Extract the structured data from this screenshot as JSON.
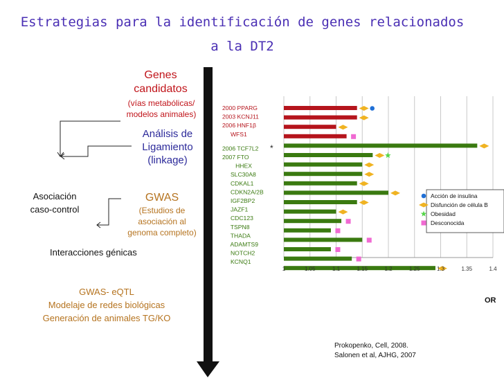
{
  "title": {
    "line1": "Estrategias para la identificación de genes relacionados",
    "line2": "a la DT2"
  },
  "left": {
    "candidates": {
      "line1": "Genes",
      "line2": "candidatos",
      "line3": "(vías metabólicas/",
      "line4": "modelos animales)"
    },
    "linkage": {
      "line1": "Análisis de",
      "line2": "Ligamiento",
      "line3": "(linkage)"
    },
    "association": {
      "line1": "Asociación",
      "line2": "caso-control"
    },
    "gwas": {
      "line1": "GWAS",
      "line2": "(Estudios de",
      "line3": "asociación al",
      "line4": "genoma completo)"
    },
    "interactions": "Interacciones génicas",
    "future": {
      "line1": "GWAS- eQTL",
      "line2": "Modelaje de redes biológicas",
      "line3": "Generación de animales TG/KO"
    }
  },
  "colors": {
    "title": "#4a2fb4",
    "red_text": "#c0141a",
    "blue_text": "#2c2a9a",
    "brown_text": "#b5731f",
    "bar_red": "#b5141c",
    "bar_green": "#3a7a10",
    "insulin": "#1f6fd6",
    "beta": "#f0b322",
    "obesity": "#56d64a",
    "unknown": "#f06ad2"
  },
  "chart_data": {
    "type": "bar",
    "orientation": "horizontal",
    "xlabel": "OR",
    "xlim": [
      1,
      1.4
    ],
    "xticks": [
      "1",
      "1.05",
      "1.1",
      "1.15",
      "1.2",
      "1.25",
      "1.3",
      "1.35",
      "1.4"
    ],
    "grid": true,
    "legend_placement": "right",
    "legend": [
      {
        "key": "insulin",
        "label": "Acción de insulina"
      },
      {
        "key": "beta",
        "label": "Disfunción de célula B"
      },
      {
        "key": "obesity",
        "label": "Obesidad"
      },
      {
        "key": "unknown",
        "label": "Desconocida"
      }
    ],
    "gene_labels": [
      "2000 PPARG",
      "2003 KCNJ11",
      "2006 HNF1β",
      "     WFS1",
      "2006 TCF7L2",
      "2007 FTO",
      "        HHEX",
      "     SLC30A8",
      "     CDKAL1",
      "     CDKN2A/2B",
      "     IGF2BP2",
      "     JAZF1",
      "     CDC123",
      "     TSPN8",
      "     THADA",
      "     ADAMTS9",
      "     NOTCH2",
      "     KCNQ1"
    ],
    "tcf7l2_asterisk": "*",
    "bars": [
      {
        "gene": "PPARG",
        "or": 1.14,
        "group": "candidate",
        "markers": [
          "beta",
          "insulin"
        ]
      },
      {
        "gene": "KCNJ11",
        "or": 1.14,
        "group": "candidate",
        "markers": [
          "beta"
        ]
      },
      {
        "gene": "HNF1β",
        "or": 1.1,
        "group": "candidate",
        "markers": [
          "beta"
        ]
      },
      {
        "gene": "WFS1",
        "or": 1.12,
        "group": "candidate",
        "markers": [
          "unknown"
        ]
      },
      {
        "gene": "TCF7L2",
        "or": 1.37,
        "group": "gwas",
        "markers": [
          "beta"
        ]
      },
      {
        "gene": "FTO",
        "or": 1.17,
        "group": "gwas",
        "markers": [
          "beta",
          "obesity"
        ]
      },
      {
        "gene": "HHEX",
        "or": 1.15,
        "group": "gwas",
        "markers": [
          "beta"
        ]
      },
      {
        "gene": "SLC30A8",
        "or": 1.15,
        "group": "gwas",
        "markers": [
          "beta"
        ]
      },
      {
        "gene": "CDKAL1",
        "or": 1.14,
        "group": "gwas",
        "markers": [
          "beta"
        ]
      },
      {
        "gene": "CDKN2A/2B",
        "or": 1.2,
        "group": "gwas",
        "markers": [
          "beta"
        ]
      },
      {
        "gene": "IGF2BP2",
        "or": 1.14,
        "group": "gwas",
        "markers": [
          "beta"
        ]
      },
      {
        "gene": "JAZF1",
        "or": 1.1,
        "group": "gwas",
        "markers": [
          "beta"
        ]
      },
      {
        "gene": "CDC123",
        "or": 1.11,
        "group": "gwas",
        "markers": [
          "unknown"
        ]
      },
      {
        "gene": "TSPN8",
        "or": 1.09,
        "group": "gwas",
        "markers": [
          "unknown"
        ]
      },
      {
        "gene": "THADA",
        "or": 1.15,
        "group": "gwas",
        "markers": [
          "unknown"
        ]
      },
      {
        "gene": "ADAMTS9",
        "or": 1.09,
        "group": "gwas",
        "markers": [
          "unknown"
        ]
      },
      {
        "gene": "NOTCH2",
        "or": 1.13,
        "group": "gwas",
        "markers": [
          "unknown"
        ]
      },
      {
        "gene": "KCNQ1",
        "or": 1.29,
        "group": "gwas",
        "markers": [
          "beta"
        ]
      }
    ]
  },
  "references": {
    "line1": "Prokopenko,  Cell, 2008.",
    "line2": "Salonen et al, AJHG, 2007"
  }
}
